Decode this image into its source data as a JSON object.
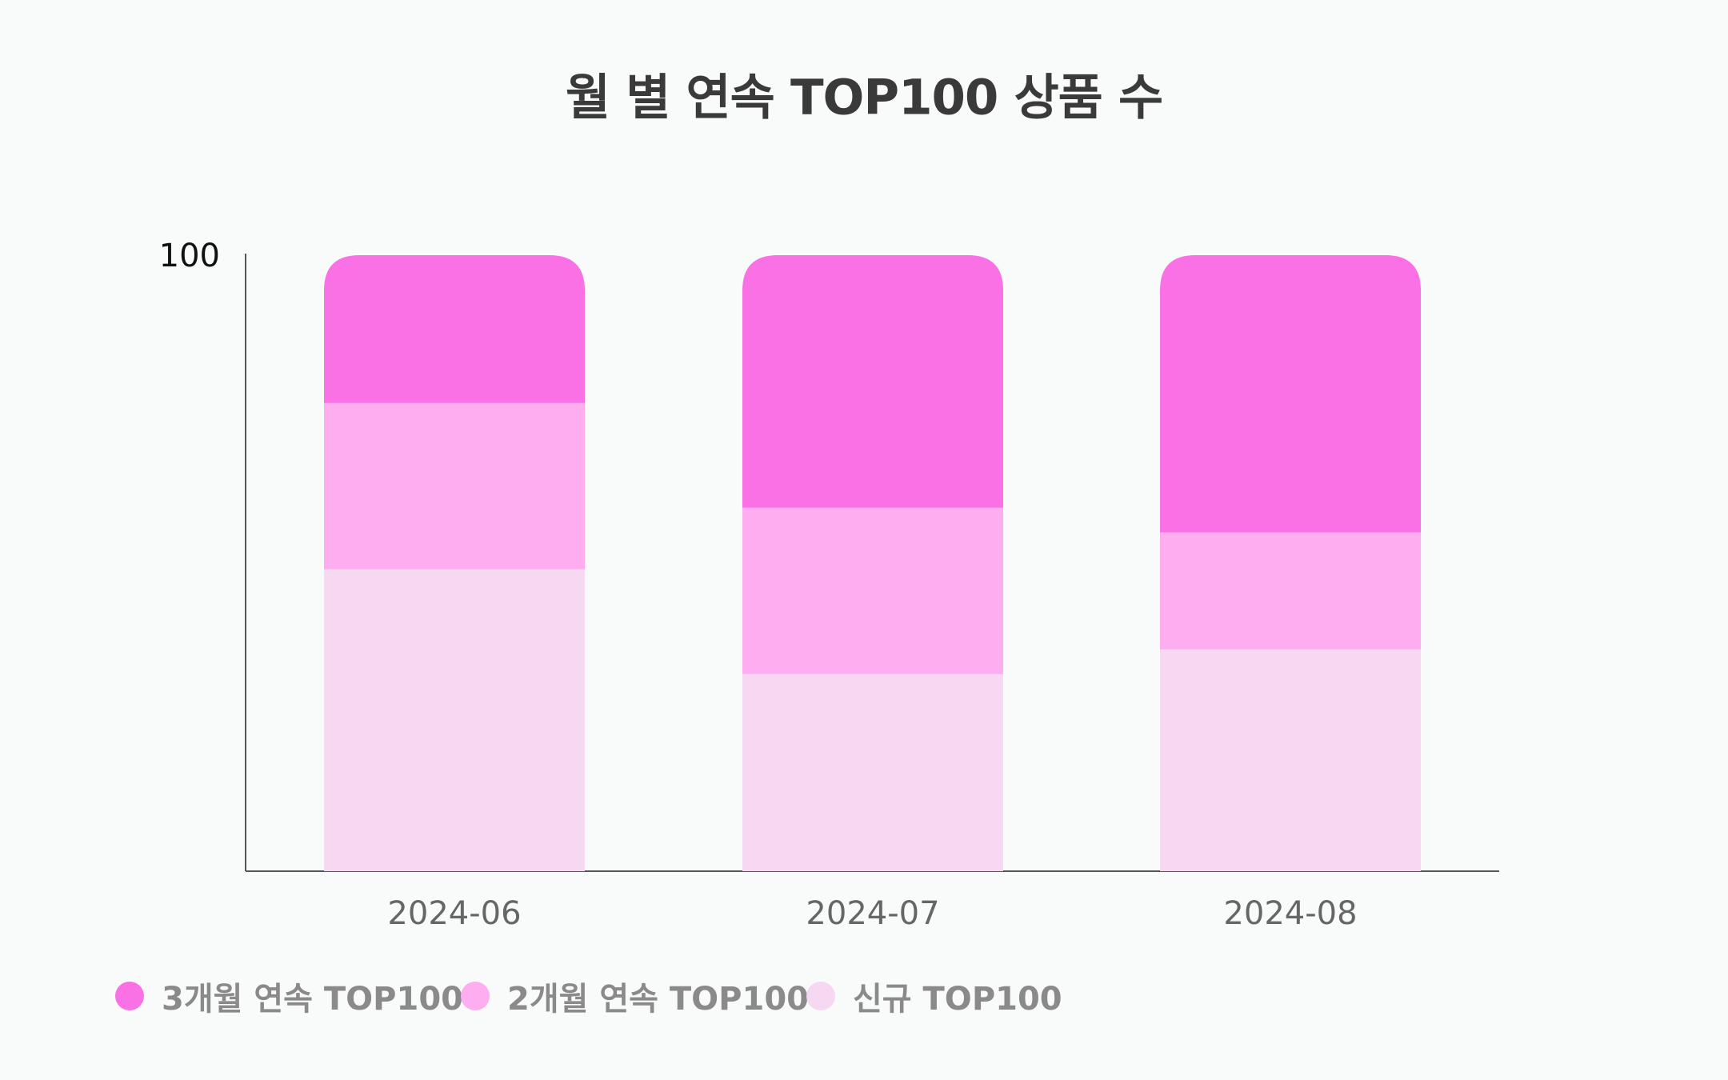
{
  "chart_data": {
    "type": "bar",
    "stacked": true,
    "title": "월 별 연속 TOP100 상품 수",
    "categories": [
      "2024-06",
      "2024-07",
      "2024-08"
    ],
    "series": [
      {
        "name": "신규 TOP100",
        "values": [
          49,
          32,
          36
        ],
        "color": "#f7d8f3"
      },
      {
        "name": "2개월 연속 TOP100",
        "values": [
          27,
          27,
          19
        ],
        "color": "#feaef0"
      },
      {
        "name": "3개월 연속 TOP100",
        "values": [
          24,
          41,
          45
        ],
        "color": "#f971e4"
      }
    ],
    "ylim": [
      0,
      100
    ],
    "yticks": [
      "100"
    ],
    "xlabel": "",
    "ylabel": "",
    "grid": false,
    "legend_position": "bottom-left"
  }
}
